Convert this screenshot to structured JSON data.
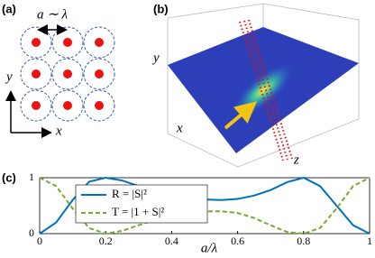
{
  "panel_labels": [
    "(a)",
    "(b)",
    "(c)"
  ],
  "diagram_a": {
    "spacing_label": "a ∼ λ",
    "y_axis": "y",
    "x_axis": "x"
  },
  "image_b": {
    "y_axis": "y",
    "x_axis": "x",
    "z_axis": "z"
  },
  "chart_data": {
    "type": "line",
    "xlabel": "a/λ",
    "x": [
      0,
      0.05,
      0.1,
      0.15,
      0.2,
      0.25,
      0.3,
      0.35,
      0.4,
      0.45,
      0.5,
      0.55,
      0.6,
      0.65,
      0.7,
      0.75,
      0.8,
      0.85,
      0.9,
      0.95,
      1
    ],
    "series": [
      {
        "name": "R = |S|²",
        "color": "#0072bd",
        "dash": false,
        "values": [
          0,
          0.2,
          0.6,
          0.93,
          1,
          0.95,
          0.85,
          0.75,
          0.68,
          0.63,
          0.61,
          0.6,
          0.62,
          0.68,
          0.78,
          0.92,
          1,
          0.85,
          0.5,
          0.15,
          0
        ]
      },
      {
        "name": "T = |1 + S|²",
        "color": "#77ac30",
        "dash": true,
        "values": [
          1,
          0.85,
          0.45,
          0.1,
          0,
          0.05,
          0.15,
          0.25,
          0.33,
          0.38,
          0.4,
          0.4,
          0.37,
          0.28,
          0.15,
          0.03,
          0,
          0.1,
          0.45,
          0.85,
          1
        ]
      }
    ],
    "xlim": [
      0,
      1
    ],
    "ylim": [
      0,
      1
    ],
    "xticks": [
      0,
      0.2,
      0.4,
      0.6,
      0.8,
      1
    ],
    "yticks": [
      0,
      1
    ]
  }
}
